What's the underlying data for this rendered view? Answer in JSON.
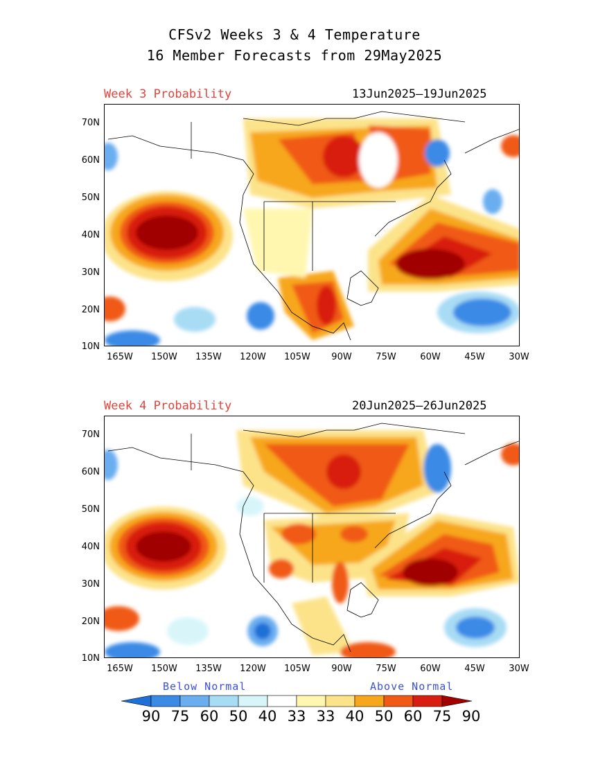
{
  "title": {
    "line1": "CFSv2 Weeks 3 & 4 Temperature",
    "line2": "16 Member Forecasts from 29May2025"
  },
  "panels": [
    {
      "week_label": "Week 3 Probability",
      "date_range": "13Jun2025—19Jun2025"
    },
    {
      "week_label": "Week 4 Probability",
      "date_range": "20Jun2025—26Jun2025"
    }
  ],
  "axes": {
    "lat_ticks": [
      "70N",
      "60N",
      "50N",
      "40N",
      "30N",
      "20N",
      "10N"
    ],
    "lon_ticks": [
      "165W",
      "150W",
      "135W",
      "120W",
      "105W",
      "90W",
      "75W",
      "60W",
      "45W",
      "30W"
    ]
  },
  "colorbar": {
    "below_label": "Below Normal",
    "above_label": "Above Normal",
    "labels": [
      "90",
      "75",
      "60",
      "50",
      "40",
      "33",
      "33",
      "40",
      "50",
      "60",
      "75",
      "90"
    ],
    "colors_below": [
      "#1e6fd6",
      "#3a8ae6",
      "#6aaef0",
      "#a8dcf4",
      "#d8f6fa"
    ],
    "color_neutral": "#ffffff",
    "colors_above": [
      "#fff7b0",
      "#fce38a",
      "#f7a71c",
      "#f05a14",
      "#d81e10",
      "#a00000"
    ]
  }
}
